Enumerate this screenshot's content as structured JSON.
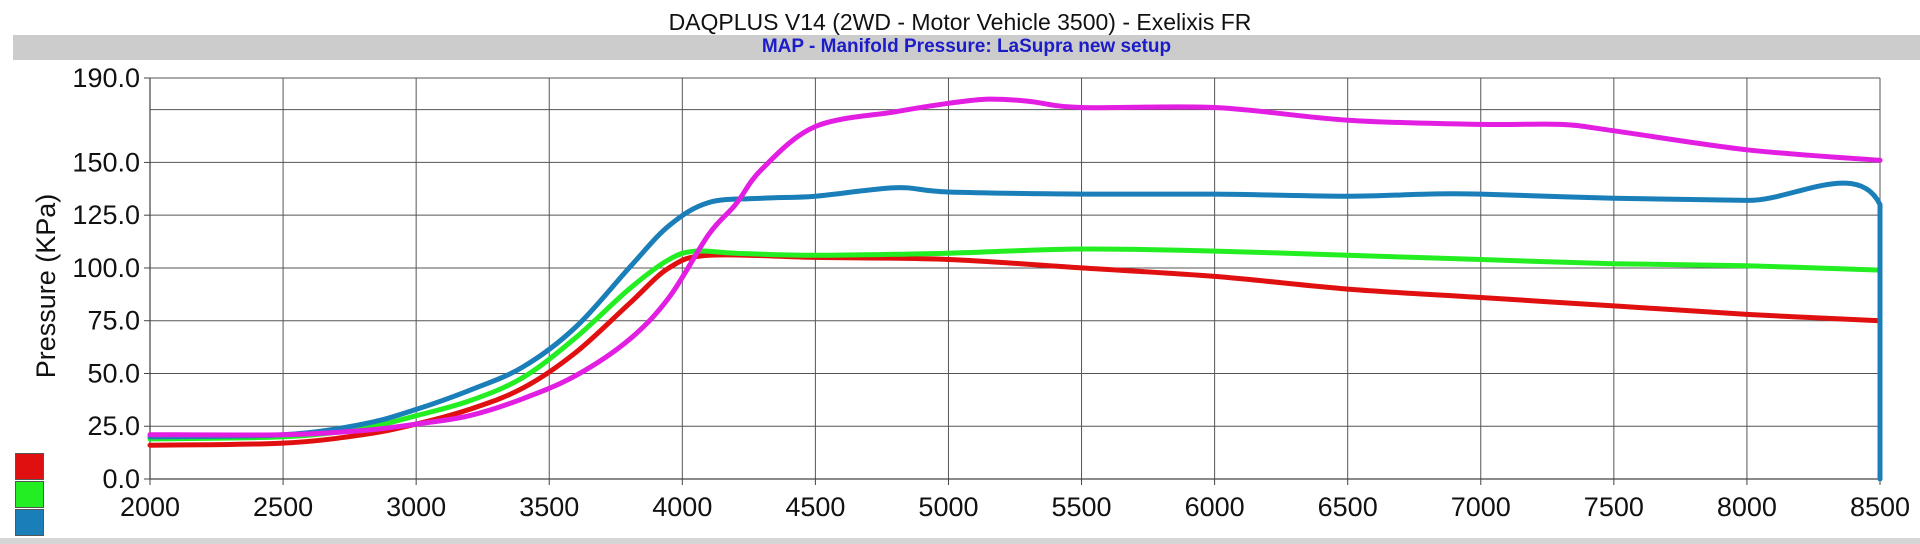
{
  "header": {
    "title": "DAQPLUS V14 (2WD - Motor Vehicle 3500) - Exelixis FR",
    "subtitle": "MAP - Manifold Pressure: LaSupra new setup"
  },
  "chart_data": {
    "type": "line",
    "title": "DAQPLUS V14 (2WD - Motor Vehicle 3500) - Exelixis FR",
    "subtitle": "MAP - Manifold Pressure: LaSupra new setup",
    "xlabel": "",
    "ylabel": "Pressure (KPa)",
    "xlim": [
      2000,
      8500
    ],
    "ylim": [
      0,
      190
    ],
    "x_ticks": [
      "2000",
      "2500",
      "3000",
      "3500",
      "4000",
      "4500",
      "5000",
      "5500",
      "6000",
      "6500",
      "7000",
      "7500",
      "8000",
      "8500"
    ],
    "y_ticks": [
      "0.0",
      "25.0",
      "50.0",
      "75.0",
      "100.0",
      "125.0",
      "150.0",
      "190.0"
    ],
    "y_tick_values": [
      0,
      25,
      50,
      75,
      100,
      125,
      150,
      190
    ],
    "extra_gridline_y": 175,
    "grid": true,
    "legend": "bottom-left swatches",
    "series": [
      {
        "color": "#e01010",
        "x": [
          2000,
          2500,
          2800,
          3000,
          3200,
          3400,
          3600,
          3800,
          3950,
          4100,
          4500,
          5000,
          5500,
          6000,
          6500,
          7000,
          7500,
          8000,
          8500
        ],
        "values": [
          16,
          17,
          21,
          26,
          33,
          43,
          60,
          83,
          100,
          106,
          105,
          104,
          100,
          96,
          90,
          86,
          82,
          78,
          75
        ]
      },
      {
        "color": "#22ee22",
        "x": [
          2000,
          2500,
          2800,
          3000,
          3200,
          3400,
          3600,
          3800,
          3950,
          4050,
          4200,
          4500,
          5000,
          5500,
          6000,
          6500,
          7000,
          7500,
          8000,
          8500
        ],
        "values": [
          19,
          20,
          24,
          30,
          37,
          48,
          67,
          90,
          104,
          108,
          107,
          106,
          107,
          109,
          108,
          106,
          104,
          102,
          101,
          99
        ]
      },
      {
        "color": "#1a7fb8",
        "x": [
          2000,
          2500,
          2800,
          3000,
          3200,
          3400,
          3600,
          3800,
          3950,
          4100,
          4300,
          4500,
          4800,
          5000,
          5500,
          6000,
          6500,
          6800,
          7000,
          7500,
          8000,
          8500,
          8500
        ],
        "values": [
          20,
          21,
          26,
          33,
          42,
          53,
          72,
          100,
          120,
          131,
          133,
          134,
          138,
          136,
          135,
          135,
          134,
          135,
          135,
          133,
          132,
          130,
          0
        ]
      },
      {
        "color": "#e21ee2",
        "x": [
          2000,
          2500,
          2800,
          3000,
          3200,
          3400,
          3600,
          3800,
          3950,
          4100,
          4200,
          4300,
          4500,
          4800,
          5000,
          5150,
          5300,
          5500,
          6000,
          6500,
          7000,
          7300,
          7500,
          8000,
          8500
        ],
        "values": [
          21,
          21,
          23,
          26,
          30,
          38,
          49,
          66,
          86,
          116,
          130,
          147,
          167,
          174,
          178,
          180,
          179,
          176,
          176,
          170,
          168,
          168,
          165,
          156,
          151
        ]
      }
    ]
  }
}
